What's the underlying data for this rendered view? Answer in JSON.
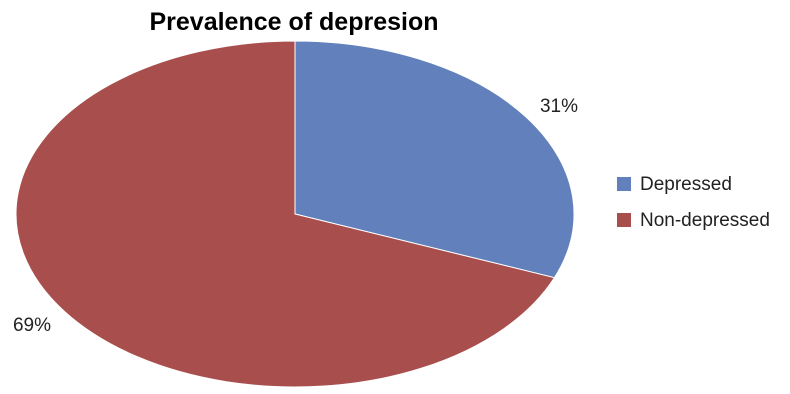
{
  "chart_data": {
    "type": "pie",
    "title": "Prevalence of depresion",
    "start_angle_deg": 0,
    "direction": "clockwise",
    "legend_position": "right",
    "slices": [
      {
        "label": "Depressed",
        "value": 31,
        "value_label": "31%",
        "color": "#6281BC"
      },
      {
        "label": "Non-depressed",
        "value": 69,
        "value_label": "69%",
        "color": "#A84F4D"
      }
    ]
  }
}
